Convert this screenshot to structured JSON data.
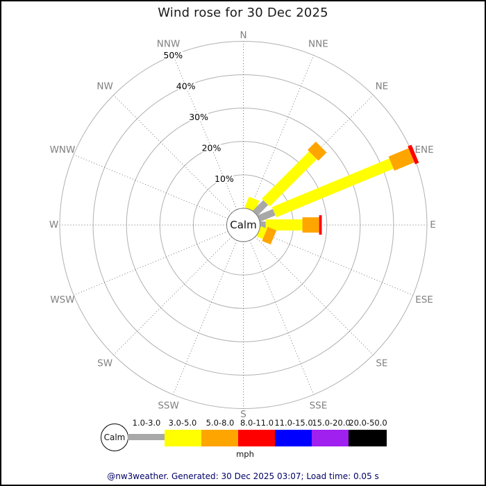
{
  "title": "Wind rose for 30 Dec 2025",
  "footer": {
    "text": "@nw3weather. Generated: 30 Dec 2025 03:07; Load time: 0.05 s"
  },
  "colors": {
    "page_border": "#000000",
    "footer_text": "#000066",
    "grid_ring": "#b0b0b0",
    "grid_radial": "#4d4d4d",
    "direction_label": "#808080",
    "percent_label": "#000000",
    "calm_circle_stroke": "#777777",
    "background": "#ffffff"
  },
  "chart_data": {
    "type": "bar",
    "variant": "wind-rose-polar-stacked",
    "title": "Wind rose for 30 Dec 2025",
    "center_label": "Calm",
    "unit": "mph",
    "radial_axis": {
      "tick_labels": [
        "10%",
        "20%",
        "30%",
        "40%",
        "50%"
      ],
      "ticks_percent": [
        10,
        20,
        30,
        40,
        50
      ],
      "max_percent": 50,
      "tick_label_direction": "NNW"
    },
    "directions": [
      "N",
      "NNE",
      "NE",
      "ENE",
      "E",
      "ESE",
      "SE",
      "SSE",
      "S",
      "SSW",
      "SW",
      "WSW",
      "W",
      "WNW",
      "NW",
      "NNW"
    ],
    "speed_bins": [
      {
        "label": "1.0-3.0",
        "color": "#a8a8a8"
      },
      {
        "label": "3.0-5.0",
        "color": "#ffff00"
      },
      {
        "label": "5.0-8.0",
        "color": "#ffa500"
      },
      {
        "label": "8.0-11.0",
        "color": "#ff0000"
      },
      {
        "label": "11.0-15.0",
        "color": "#0000ff"
      },
      {
        "label": "15.0-20.0",
        "color": "#a020f0"
      },
      {
        "label": "20.0-50.0",
        "color": "#000000"
      }
    ],
    "series": [
      {
        "direction": "NNE",
        "segments": [
          {
            "bin": "3.0-5.0",
            "value": 3.5
          }
        ]
      },
      {
        "direction": "NE",
        "segments": [
          {
            "bin": "1.0-3.0",
            "value": 4.5
          },
          {
            "bin": "3.0-5.0",
            "value": 20.0
          },
          {
            "bin": "5.0-8.0",
            "value": 3.5
          }
        ]
      },
      {
        "direction": "ENE",
        "segments": [
          {
            "bin": "1.0-3.0",
            "value": 5.0
          },
          {
            "bin": "3.0-5.0",
            "value": 38.0
          },
          {
            "bin": "5.0-8.0",
            "value": 6.5
          },
          {
            "bin": "8.0-11.0",
            "value": 1.2
          }
        ]
      },
      {
        "direction": "E",
        "segments": [
          {
            "bin": "1.0-3.0",
            "value": 1.7
          },
          {
            "bin": "3.0-5.0",
            "value": 11.0
          },
          {
            "bin": "5.0-8.0",
            "value": 5.0
          },
          {
            "bin": "8.0-11.0",
            "value": 0.8
          }
        ]
      },
      {
        "direction": "ESE",
        "segments": [
          {
            "bin": "3.0-5.0",
            "value": 2.0
          },
          {
            "bin": "5.0-8.0",
            "value": 2.8
          }
        ]
      }
    ],
    "legend": {
      "calm_label": "Calm",
      "unit_label": "mph"
    }
  }
}
